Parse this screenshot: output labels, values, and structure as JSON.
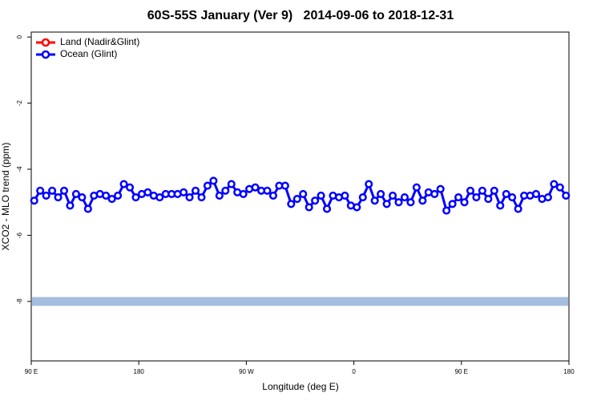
{
  "chart_data": {
    "type": "line",
    "title": "60S-55S January (Ver 9)   2014-09-06 to 2018-12-31",
    "x_label": "Longitude (deg E)",
    "y_label": "XCO2 - MLO trend (ppm)",
    "xlim": [
      90,
      540
    ],
    "ylim": [
      -9.8,
      0.15
    ],
    "xticks": [
      {
        "value": 90,
        "label": "90 E"
      },
      {
        "value": 180,
        "label": "180"
      },
      {
        "value": 270,
        "label": "90 W"
      },
      {
        "value": 360,
        "label": "0"
      },
      {
        "value": 450,
        "label": "90 E"
      },
      {
        "value": 540,
        "label": "180"
      }
    ],
    "yticks": [
      0,
      -2,
      -4,
      -6,
      -8
    ],
    "legend": "top-left",
    "reference_line": {
      "value": -8,
      "color": "#a5bddf"
    },
    "x": [
      92.5,
      97.5,
      102.5,
      107.5,
      112.5,
      117.5,
      122.5,
      127.5,
      132.5,
      137.5,
      142.5,
      147.5,
      152.5,
      157.5,
      162.5,
      167.5,
      172.5,
      177.5,
      182.5,
      187.5,
      192.5,
      197.5,
      202.5,
      207.5,
      212.5,
      217.5,
      222.5,
      227.5,
      232.5,
      237.5,
      242.5,
      247.5,
      252.5,
      257.5,
      262.5,
      267.5,
      272.5,
      277.5,
      282.5,
      287.5,
      292.5,
      297.5,
      302.5,
      307.5,
      312.5,
      317.5,
      322.5,
      327.5,
      332.5,
      337.5,
      342.5,
      347.5,
      352.5,
      357.5,
      362.5,
      367.5,
      372.5,
      377.5,
      382.5,
      387.5,
      392.5,
      397.5,
      402.5,
      407.5,
      412.5,
      417.5,
      422.5,
      427.5,
      432.5,
      437.5,
      442.5,
      447.5,
      452.5,
      457.5,
      462.5,
      467.5,
      472.5,
      477.5,
      482.5,
      487.5,
      492.5,
      497.5,
      502.5,
      507.5,
      512.5,
      517.5,
      522.5,
      527.5,
      532.5,
      537.5
    ],
    "series": [
      {
        "name": "Land (Nadir&Glint)",
        "color": "#ff0000",
        "values": [
          null,
          null,
          null,
          null,
          null,
          null,
          null,
          null,
          null,
          null,
          null,
          null,
          null,
          null,
          null,
          null,
          null,
          null,
          null,
          null,
          null,
          null,
          null,
          null,
          null,
          null,
          null,
          null,
          null,
          null,
          null,
          null,
          null,
          null,
          null,
          null,
          null,
          null,
          null,
          null,
          null,
          null,
          null,
          null,
          null,
          null,
          null,
          null,
          null,
          null,
          null,
          null,
          null,
          null,
          null,
          null,
          null,
          null,
          null,
          null,
          null,
          null,
          null,
          null,
          null,
          null,
          null,
          null,
          null,
          null,
          null,
          null,
          null,
          null,
          null,
          null,
          null,
          null,
          null,
          null,
          null,
          null,
          null,
          null,
          null,
          null,
          null,
          null,
          null,
          null
        ]
      },
      {
        "name": "Ocean (Glint)",
        "color": "#0000ff",
        "values": [
          -4.95,
          -4.65,
          -4.8,
          -4.65,
          -4.85,
          -4.65,
          -5.1,
          -4.75,
          -4.85,
          -5.2,
          -4.8,
          -4.75,
          -4.8,
          -4.9,
          -4.8,
          -4.45,
          -4.55,
          -4.85,
          -4.75,
          -4.7,
          -4.8,
          -4.85,
          -4.75,
          -4.75,
          -4.75,
          -4.7,
          -4.85,
          -4.65,
          -4.85,
          -4.5,
          -4.35,
          -4.8,
          -4.65,
          -4.45,
          -4.7,
          -4.75,
          -4.6,
          -4.55,
          -4.65,
          -4.65,
          -4.8,
          -4.5,
          -4.5,
          -5.05,
          -4.9,
          -4.75,
          -5.15,
          -4.95,
          -4.8,
          -5.2,
          -4.8,
          -4.85,
          -4.8,
          -5.1,
          -5.15,
          -4.85,
          -4.45,
          -4.95,
          -4.75,
          -5.05,
          -4.8,
          -5.0,
          -4.85,
          -5.0,
          -4.55,
          -4.95,
          -4.7,
          -4.75,
          -4.6,
          -5.25,
          -5.05,
          -4.85,
          -5.0,
          -4.65,
          -4.85,
          -4.65,
          -4.9,
          -4.65,
          -5.1,
          -4.75,
          -4.85,
          -5.2,
          -4.8,
          -4.8,
          -4.75,
          -4.9,
          -4.85,
          -4.45,
          -4.55,
          -4.8
        ]
      }
    ]
  }
}
